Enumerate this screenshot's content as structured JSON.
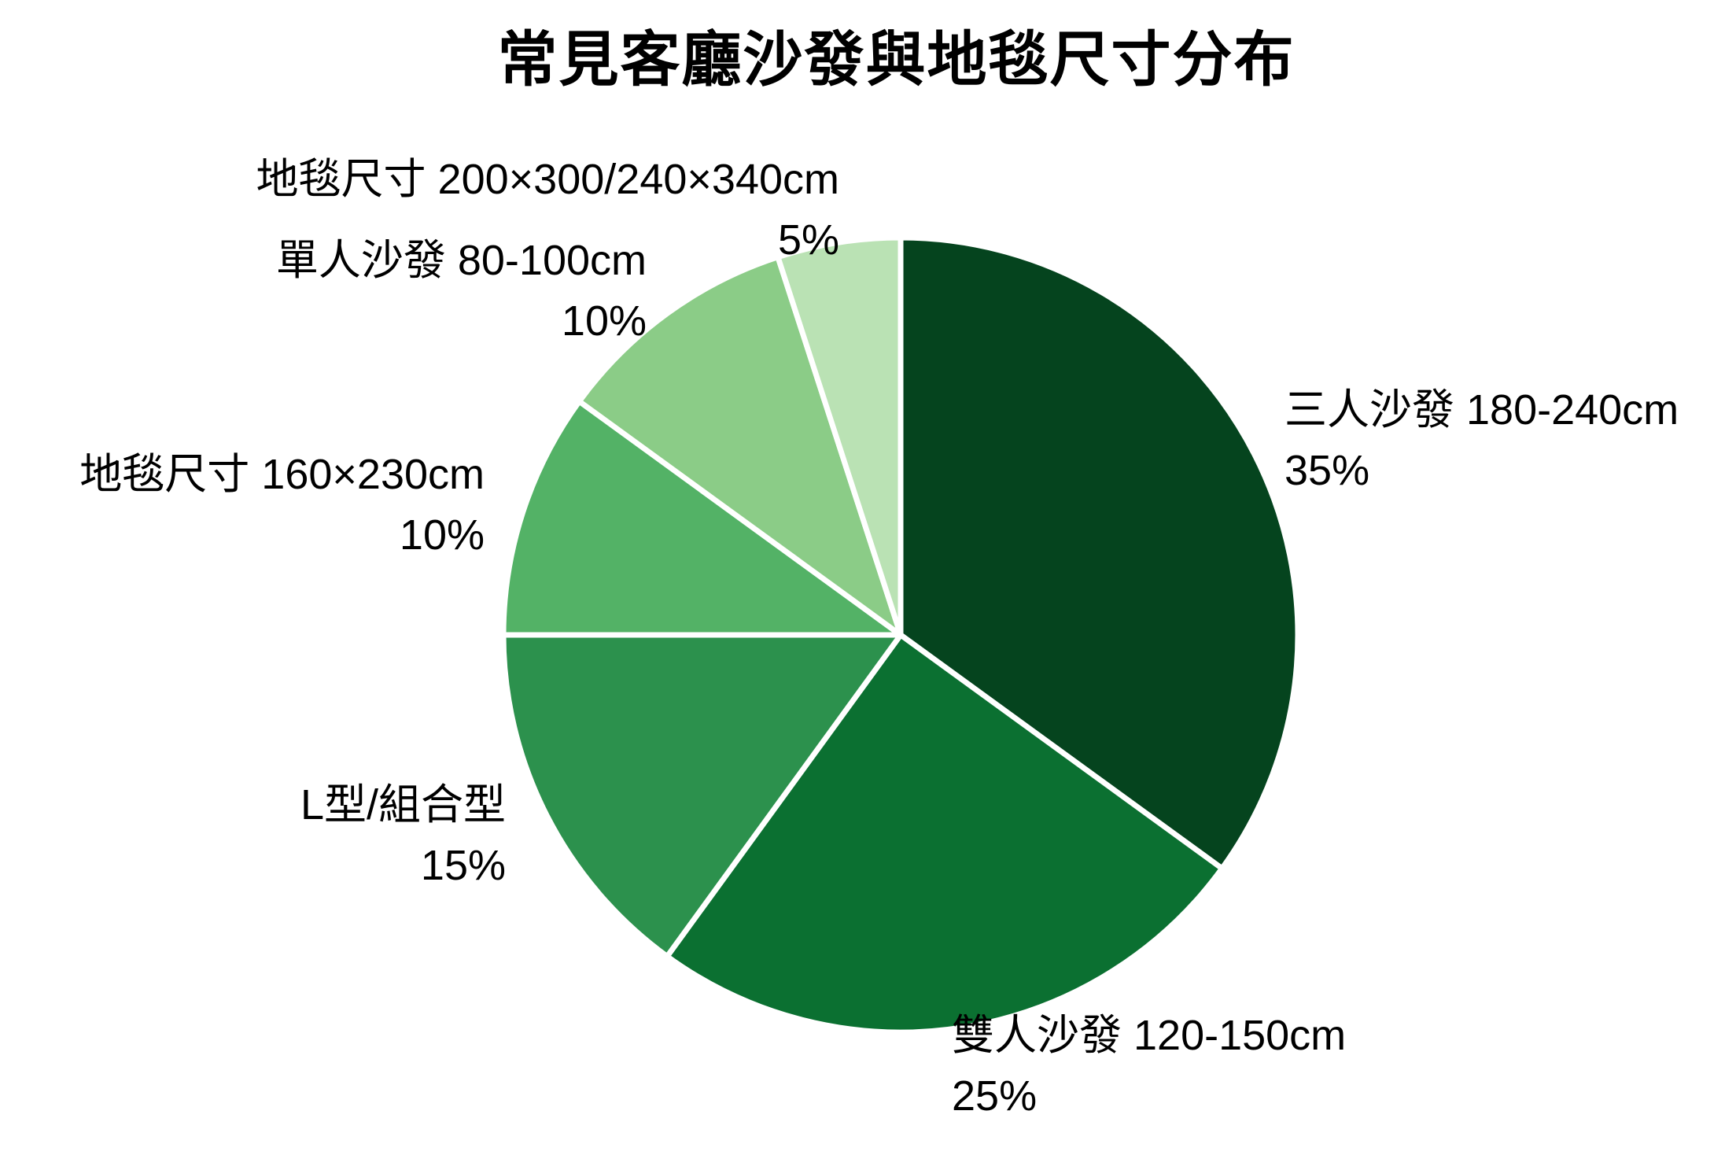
{
  "title": "常見客廳沙發與地毯尺寸分布",
  "chart_data": {
    "type": "pie",
    "title": "常見客廳沙發與地毯尺寸分布",
    "unit": "percent",
    "start_angle": "12 o'clock",
    "direction": "clockwise",
    "legend": "none",
    "label_position": "outside",
    "divider_color": "#FFFFFF",
    "background": "#FFFFFF",
    "text_color": "#000000",
    "slices": [
      {
        "label": "三人沙發 180-240cm",
        "value": 35,
        "pct_label": "35%",
        "color": "#05441E"
      },
      {
        "label": "雙人沙發 120-150cm",
        "value": 25,
        "pct_label": "25%",
        "color": "#0B7031"
      },
      {
        "label": "L型/組合型",
        "value": 15,
        "pct_label": "15%",
        "color": "#2C914D"
      },
      {
        "label": "地毯尺寸 160×230cm",
        "value": 10,
        "pct_label": "10%",
        "color": "#53B266"
      },
      {
        "label": "單人沙發 80-100cm",
        "value": 10,
        "pct_label": "10%",
        "color": "#8BCC87"
      },
      {
        "label": "地毯尺寸 200×300/240×340cm",
        "value": 5,
        "pct_label": "5%",
        "color": "#BAE2B4"
      }
    ]
  }
}
